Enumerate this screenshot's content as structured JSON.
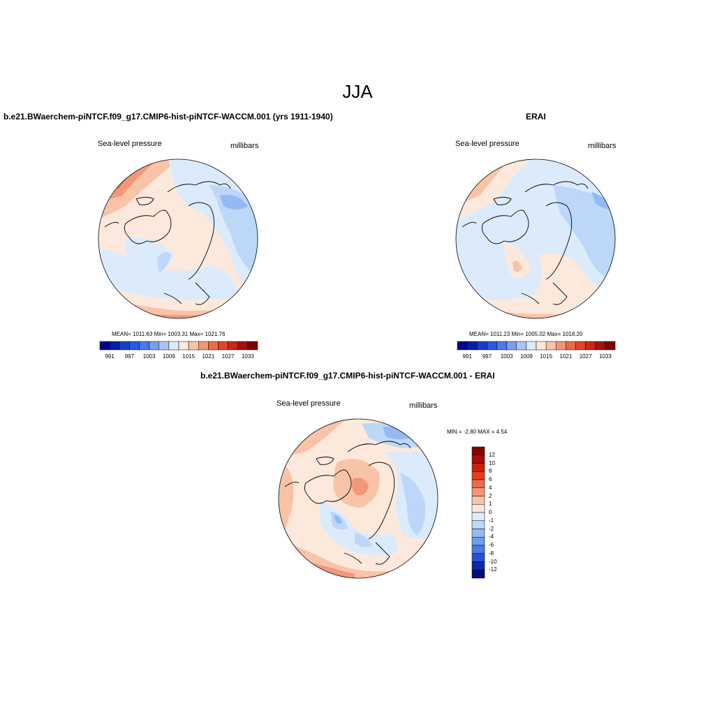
{
  "figure": {
    "title": "JJA"
  },
  "colors": {
    "warm": [
      "#fde9dc",
      "#f9c3a8",
      "#f3977a",
      "#ec6a4b",
      "#d7412b",
      "#b22116",
      "#8a0a0a"
    ],
    "cool": [
      "#dcebfc",
      "#bcd7f8",
      "#93baf2",
      "#6f9cec",
      "#4a7ae4",
      "#2552cf",
      "#0a2aa8"
    ],
    "coastline": "#000000"
  },
  "panels": {
    "model": {
      "title": "b.e21.BWaerchem-piNTCF.f09_g17.CMIP6-hist-piNTCF-WACCM.001 (yrs 1911-1940)",
      "left_label": "Sea-level pressure",
      "right_label": "millibars",
      "stats": "MEAN= 1011.63  Min= 1003.31  Max= 1021.76"
    },
    "obs": {
      "title": "ERAI",
      "left_label": "Sea-level pressure",
      "right_label": "millibars",
      "stats": "MEAN= 1011.23  Min= 1005.02  Max= 1018.20"
    },
    "diff": {
      "title": "b.e21.BWaerchem-piNTCF.f09_g17.CMIP6-hist-piNTCF-WACCM.001 - ERAI",
      "left_label": "Sea-level pressure",
      "right_label": "millibars",
      "stats": "MIN =  -2.80 MAX =   4.54"
    }
  },
  "colorbars": {
    "abs": {
      "colors": [
        "#00008b",
        "#0a1fa0",
        "#1a3fc4",
        "#2a5ae0",
        "#4a7ae4",
        "#7a9eec",
        "#a9c4f4",
        "#dcebfc",
        "#fde9dc",
        "#f9c3a8",
        "#f3977a",
        "#ec6a4b",
        "#e0442a",
        "#c42a18",
        "#a01410",
        "#7a0404"
      ],
      "labels": [
        "991",
        "997",
        "1003",
        "1009",
        "1015",
        "1021",
        "1027",
        "1033"
      ]
    },
    "diff": {
      "colors": [
        "#8a0000",
        "#a80c08",
        "#c8200e",
        "#e0401e",
        "#ec6a4b",
        "#f3977a",
        "#f9c3a8",
        "#fde9dc",
        "#e0ecfa",
        "#bcd7f8",
        "#93baf2",
        "#6f9cec",
        "#4a7ae4",
        "#2552cf",
        "#0a2aa8",
        "#000c80"
      ],
      "labels": [
        "12",
        "10",
        "8",
        "6",
        "4",
        "2",
        "1",
        "0",
        "-1",
        "-2",
        "-4",
        "-6",
        "-8",
        "-10",
        "-12"
      ]
    }
  }
}
